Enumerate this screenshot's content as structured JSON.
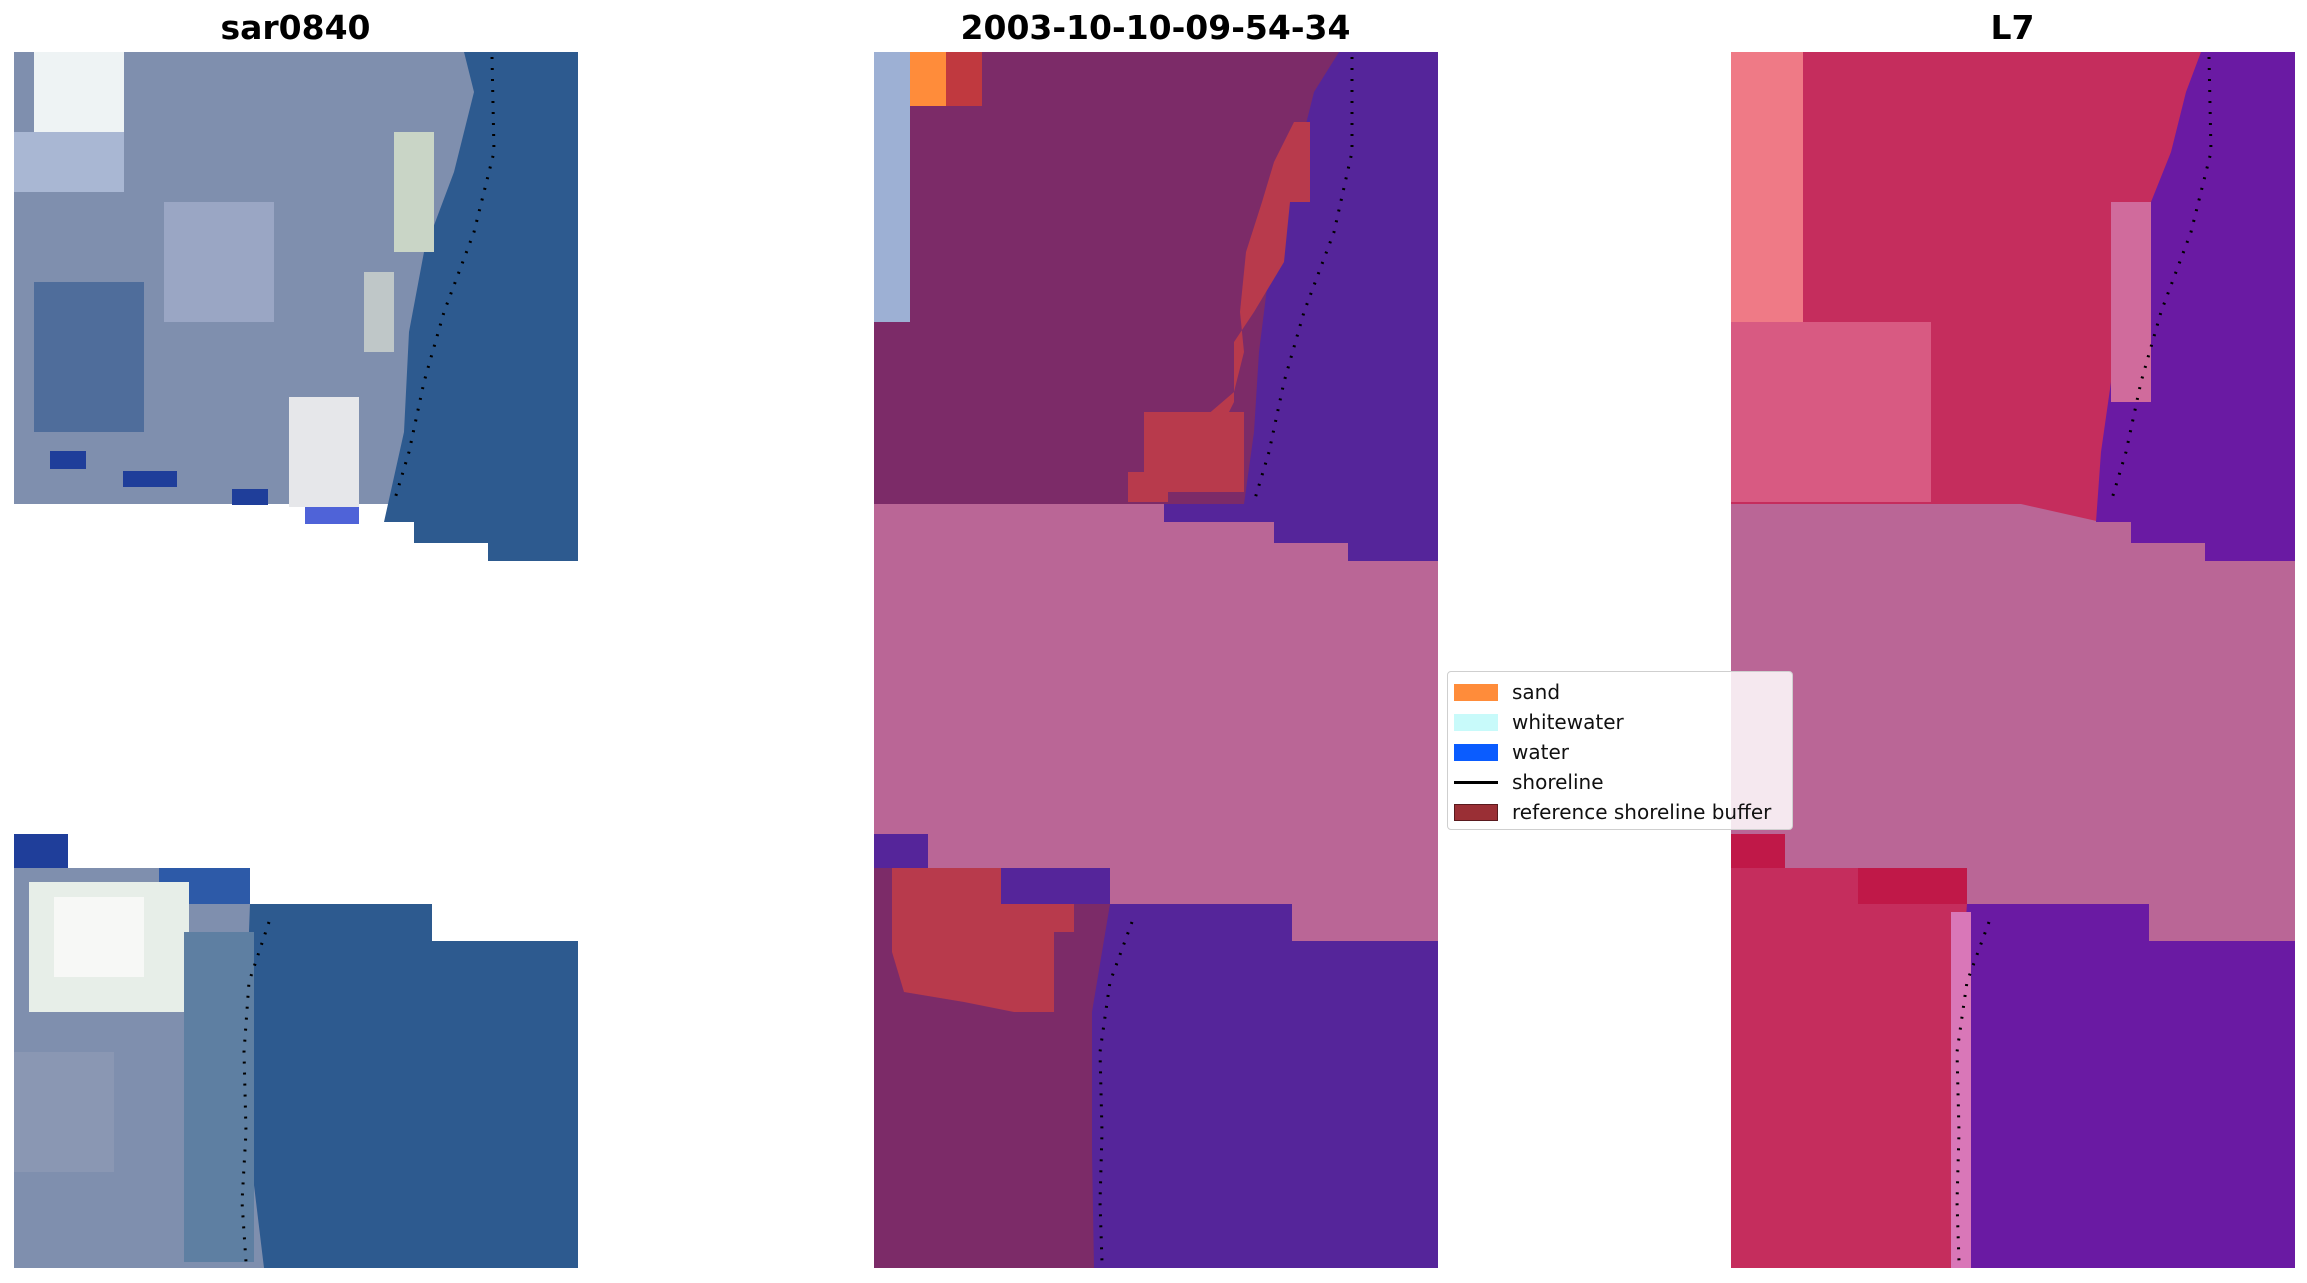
{
  "titles": {
    "left": "sar0840",
    "middle": "2003-10-10-09-54-34",
    "right": "L7"
  },
  "legend": {
    "items": [
      {
        "label": "sand",
        "type": "patch",
        "color": "#ff8c3a"
      },
      {
        "label": "whitewater",
        "type": "patch",
        "color": "#c8fafa"
      },
      {
        "label": "water",
        "type": "patch",
        "color": "#0a5cff"
      },
      {
        "label": "shoreline",
        "type": "line",
        "color": "#000000"
      },
      {
        "label": "reference shoreline buffer",
        "type": "patch",
        "color": "#9a2f35"
      }
    ]
  },
  "colors": {
    "no_data_fill": "#ba6696",
    "rgb_water": "#2d5a8f",
    "rgb_land": "#7f8fae",
    "class_land": "#7c2b68",
    "class_water": "#55259a",
    "class_buffer": "#b83a4c",
    "mndwi_land": "#c52d5d",
    "mndwi_water": "#6a1aa3"
  }
}
